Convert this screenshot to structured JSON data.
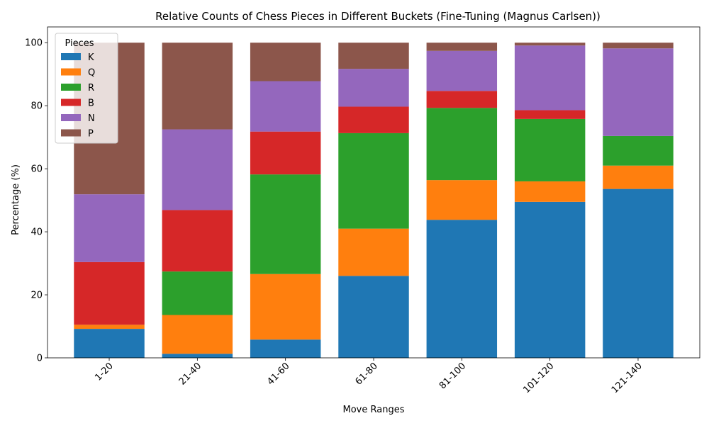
{
  "chart_data": {
    "type": "bar",
    "stacked": true,
    "title": "Relative Counts of Chess Pieces in Different Buckets (Fine-Tuning (Magnus Carlsen))",
    "xlabel": "Move Ranges",
    "ylabel": "Percentage (%)",
    "ylim": [
      0,
      105
    ],
    "yticks": [
      0,
      20,
      40,
      60,
      80,
      100
    ],
    "categories": [
      "1-20",
      "21-40",
      "41-60",
      "61-80",
      "81-100",
      "101-120",
      "121-140"
    ],
    "legend": {
      "title": "Pieces",
      "placement": "top-left"
    },
    "grid": false,
    "series": [
      {
        "name": "K",
        "color": "#1f77b4",
        "values": [
          9.2,
          1.3,
          5.8,
          26.0,
          43.8,
          49.5,
          53.6
        ]
      },
      {
        "name": "Q",
        "color": "#ff7f0e",
        "values": [
          1.3,
          12.3,
          20.8,
          15.0,
          12.6,
          6.5,
          7.4
        ]
      },
      {
        "name": "R",
        "color": "#2ca02c",
        "values": [
          0.0,
          13.8,
          31.6,
          30.3,
          22.9,
          19.8,
          9.4
        ]
      },
      {
        "name": "B",
        "color": "#d62728",
        "values": [
          19.9,
          19.5,
          13.6,
          8.4,
          5.4,
          2.8,
          0.0
        ]
      },
      {
        "name": "N",
        "color": "#9467bd",
        "values": [
          21.5,
          25.6,
          16.0,
          12.0,
          12.7,
          20.5,
          27.8
        ]
      },
      {
        "name": "P",
        "color": "#8c564b",
        "values": [
          48.1,
          27.5,
          12.2,
          8.3,
          2.6,
          0.9,
          1.8
        ]
      }
    ]
  }
}
